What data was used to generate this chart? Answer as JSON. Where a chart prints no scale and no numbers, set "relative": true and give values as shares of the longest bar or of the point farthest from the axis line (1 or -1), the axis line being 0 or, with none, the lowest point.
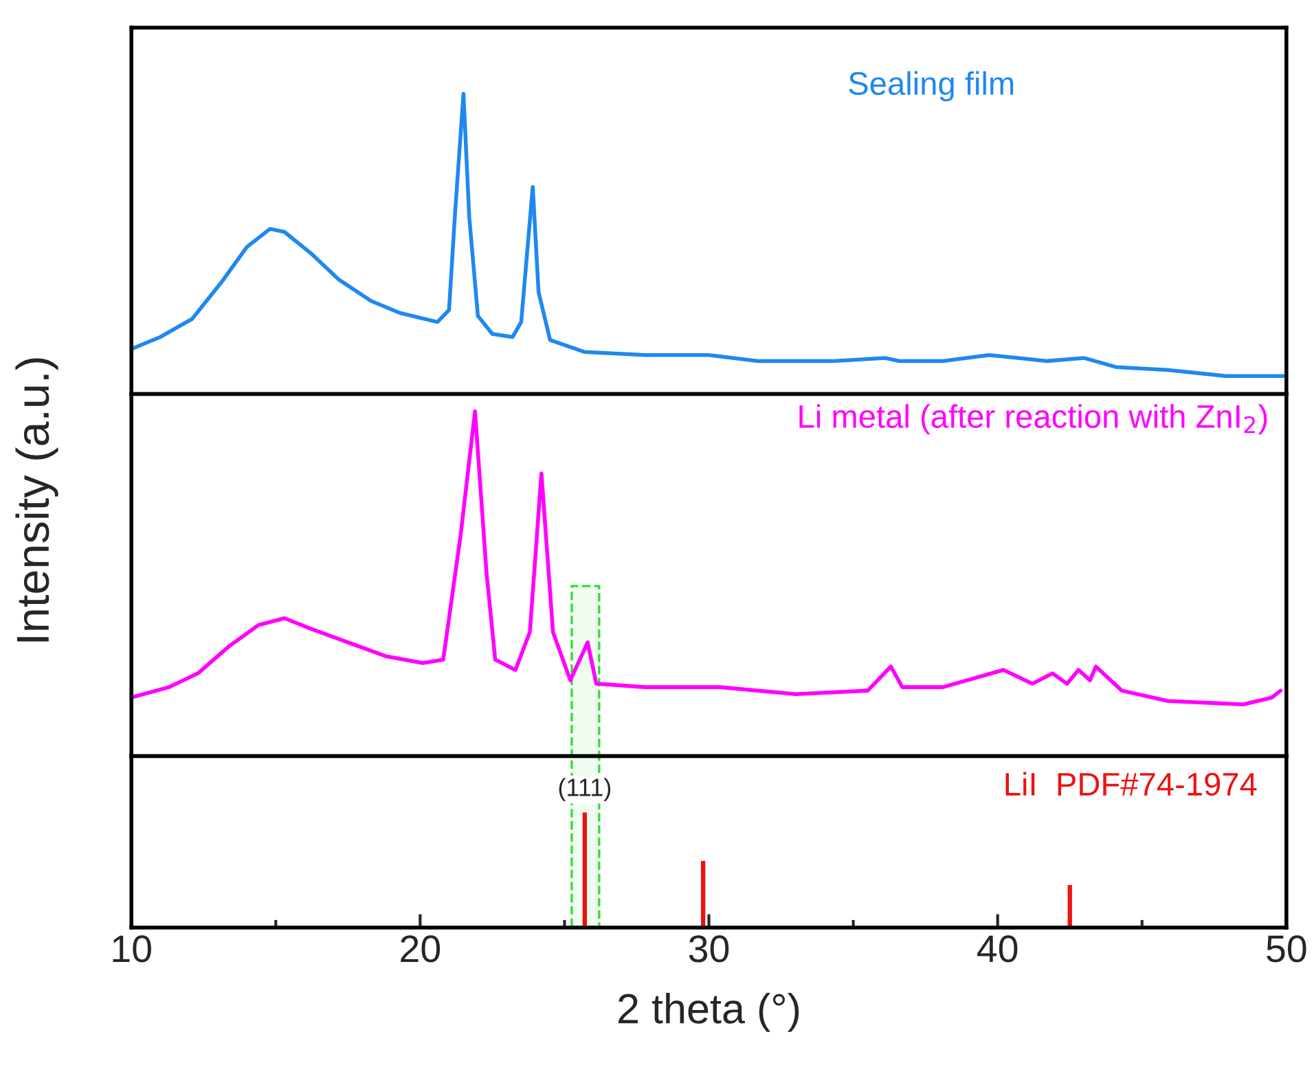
{
  "chart_data": [
    {
      "type": "line",
      "relative": true,
      "xlim": [
        10,
        50
      ],
      "tick_labels": false,
      "marker": "none",
      "line_style": "solid",
      "series": [
        {
          "name": "Sealing film",
          "color": "#1e88f0",
          "x": [
            10.0,
            11.0,
            12.1,
            13.1,
            14.0,
            14.8,
            15.3,
            16.2,
            17.2,
            18.3,
            19.3,
            20.6,
            21.0,
            21.2,
            21.5,
            21.7,
            22.0,
            22.5,
            23.2,
            23.5,
            23.9,
            24.1,
            24.5,
            25.7,
            27.8,
            30.0,
            31.7,
            34.3,
            36.1,
            36.6,
            38.1,
            39.7,
            40.7,
            41.7,
            43.0,
            44.1,
            45.9,
            47.9,
            49.9
          ],
          "values": [
            0.15,
            0.19,
            0.25,
            0.37,
            0.49,
            0.55,
            0.54,
            0.47,
            0.38,
            0.31,
            0.27,
            0.24,
            0.28,
            0.59,
            1.0,
            0.59,
            0.26,
            0.2,
            0.19,
            0.24,
            0.69,
            0.34,
            0.18,
            0.14,
            0.13,
            0.13,
            0.11,
            0.11,
            0.12,
            0.11,
            0.11,
            0.13,
            0.12,
            0.11,
            0.12,
            0.09,
            0.08,
            0.06,
            0.06
          ]
        }
      ]
    },
    {
      "type": "line",
      "relative": true,
      "xlim": [
        10,
        50
      ],
      "tick_labels": false,
      "marker": "none",
      "line_style": "solid",
      "ylabel": "Intensity (a.u.)",
      "bands": [
        {
          "axis": "x",
          "from": 25.25,
          "to": 26.2,
          "color": "#33dd33"
        }
      ],
      "series": [
        {
          "name": "Li metal (after reaction with ZnI$_{2}$)",
          "color": "#ff00ff",
          "x": [
            10.0,
            11.3,
            12.3,
            13.4,
            14.4,
            15.3,
            16.2,
            17.5,
            18.8,
            20.1,
            20.8,
            21.4,
            21.9,
            22.3,
            22.6,
            23.3,
            23.8,
            24.2,
            24.6,
            25.2,
            25.8,
            26.1,
            27.8,
            30.4,
            33.0,
            35.5,
            36.3,
            36.7,
            38.1,
            40.2,
            41.2,
            41.9,
            42.4,
            42.8,
            43.2,
            43.4,
            44.3,
            45.9,
            48.5,
            49.5,
            49.8
          ],
          "values": [
            0.17,
            0.2,
            0.24,
            0.32,
            0.38,
            0.4,
            0.37,
            0.33,
            0.29,
            0.27,
            0.28,
            0.64,
            1.0,
            0.53,
            0.28,
            0.25,
            0.36,
            0.82,
            0.36,
            0.22,
            0.33,
            0.21,
            0.2,
            0.2,
            0.18,
            0.19,
            0.26,
            0.2,
            0.2,
            0.25,
            0.21,
            0.24,
            0.21,
            0.25,
            0.22,
            0.26,
            0.19,
            0.16,
            0.15,
            0.17,
            0.19
          ]
        }
      ]
    },
    {
      "type": "bar",
      "relative": true,
      "xlim": [
        10,
        50
      ],
      "tick_labels": "x",
      "xlabel": "2 theta (°)",
      "xticks": [
        10,
        {
          "value": 15,
          "label": null
        },
        20,
        {
          "value": 25,
          "label": null
        },
        30,
        {
          "value": 35,
          "label": null
        },
        40,
        {
          "value": 45,
          "label": null
        },
        50
      ],
      "bands": [
        {
          "axis": "x",
          "from": 25.25,
          "to": 26.2,
          "color": "#33dd33"
        }
      ],
      "annotations": [
        {
          "text": "(111)",
          "x": 25.7,
          "y": 1.0
        }
      ],
      "series": [
        {
          "name": "LiI  PDF#74-1974",
          "color": "#ee1111",
          "x": [
            25.7,
            29.8,
            42.5
          ],
          "values": [
            1.0,
            0.58,
            0.37
          ]
        }
      ]
    }
  ]
}
